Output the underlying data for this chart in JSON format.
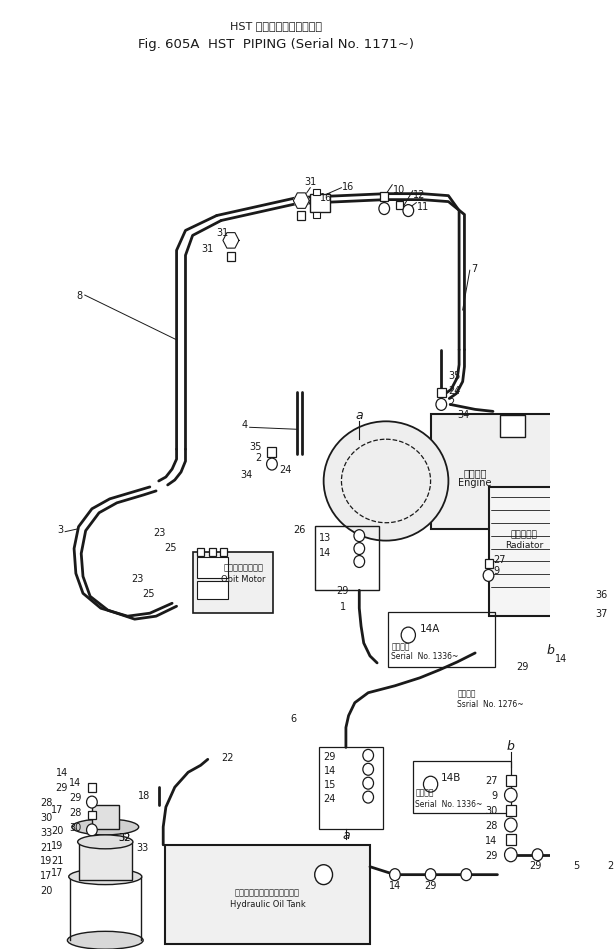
{
  "title_line1": "HST パイピング（適用号機",
  "title_line2": "Fig. 605A  HST  PIPING (Serial No. 1171~)",
  "bg": "#ffffff",
  "lc": "#1a1a1a",
  "engine_label_jp": "エンジン",
  "engine_label_en": "Engine",
  "radiator_label_jp": "ラジエータ",
  "radiator_label_en": "Radiator",
  "obit_label_jp": "オービットモータ",
  "obit_label_en": "Obit Motor",
  "tank_label_jp": "ハイドロリックオイルタンク",
  "tank_label_en": "Hydraulic Oil Tank",
  "serial_1336": "Serial  No. 1336~",
  "serial_1276": "Ssrial  No. 1276~",
  "tekiyo": "適用号機"
}
